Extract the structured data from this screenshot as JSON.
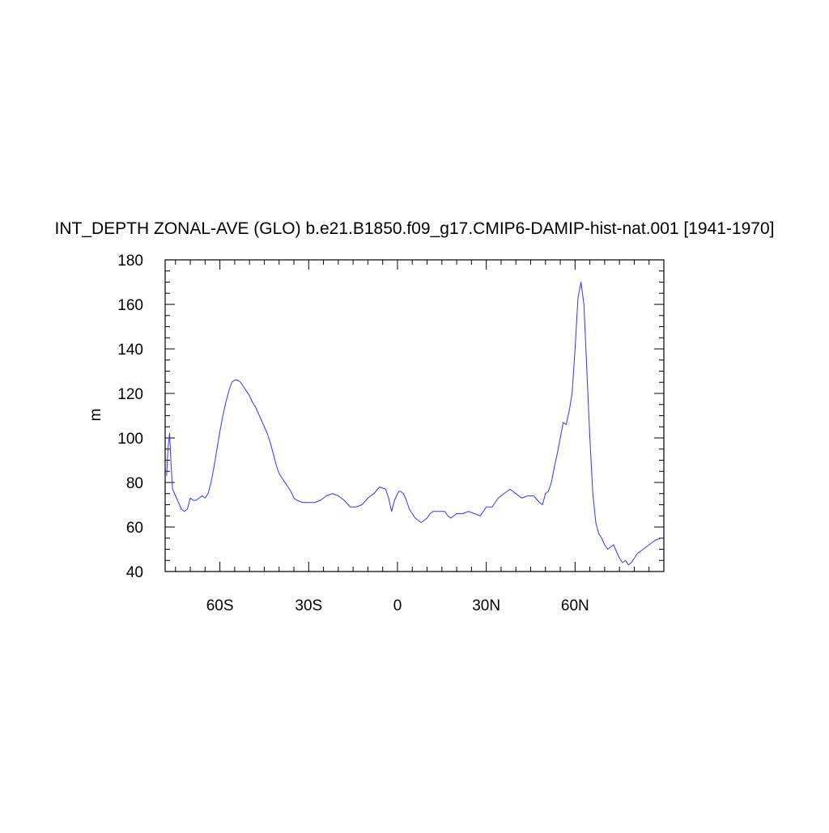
{
  "chart_data": {
    "type": "line",
    "title": "INT_DEPTH ZONAL-AVE (GLO) b.e21.B1850.f09_g17.CMIP6-DAMIP-hist-nat.001 [1941-1970]",
    "xlabel": "",
    "ylabel": "m",
    "xlim": [
      -78.5,
      90
    ],
    "ylim": [
      40,
      180
    ],
    "x_ticks": [
      -60,
      -30,
      0,
      30,
      60
    ],
    "x_tick_labels": [
      "60S",
      "30S",
      "0",
      "30N",
      "60N"
    ],
    "y_ticks": [
      40,
      60,
      80,
      100,
      120,
      140,
      160,
      180
    ],
    "y_tick_labels": [
      "40",
      "60",
      "80",
      "100",
      "120",
      "140",
      "160",
      "180"
    ],
    "grid": false,
    "line_color": "#3333ff",
    "series": [
      {
        "x": [
          -78,
          -77.5,
          -77,
          -76.5,
          -76,
          -75,
          -74,
          -73,
          -72,
          -71,
          -70,
          -69,
          -68,
          -67,
          -66,
          -65,
          -64,
          -63,
          -62,
          -61,
          -60,
          -59,
          -58,
          -57,
          -56,
          -55,
          -54,
          -53,
          -52,
          -51,
          -50,
          -49,
          -48,
          -47,
          -46,
          -45,
          -44,
          -43,
          -42,
          -41,
          -40,
          -39,
          -38,
          -37,
          -36,
          -35,
          -34,
          -32,
          -30,
          -28,
          -26,
          -24,
          -22,
          -20,
          -18,
          -16,
          -14,
          -12,
          -10,
          -8,
          -6,
          -4,
          -3,
          -2,
          -1,
          0,
          0.5,
          1,
          2,
          3,
          4,
          5,
          6,
          7,
          8,
          9,
          10,
          11,
          12,
          13,
          14,
          15,
          16,
          17,
          18,
          20,
          22,
          24,
          26,
          28,
          30,
          32,
          34,
          36,
          38,
          40,
          42,
          44,
          46,
          48,
          49,
          50,
          51,
          52,
          53,
          54,
          55,
          56,
          57,
          58,
          59,
          60,
          61,
          62,
          63,
          64,
          65,
          66,
          67,
          68,
          69,
          70,
          71,
          72,
          73,
          74,
          75,
          76,
          77,
          78,
          79,
          80,
          81,
          82,
          83,
          84,
          85,
          86,
          87,
          88,
          89,
          90
        ],
        "y": [
          83,
          96,
          102,
          88,
          77,
          74,
          71,
          68,
          67,
          68,
          73,
          72,
          72,
          73,
          74,
          73,
          75,
          80,
          87,
          95,
          103,
          110,
          116,
          121,
          125,
          126,
          126,
          125,
          123,
          121,
          119,
          116,
          114,
          111,
          108,
          105,
          102,
          98,
          93,
          88,
          84,
          82,
          80,
          78,
          76,
          73,
          72,
          71,
          71,
          71,
          72,
          74,
          75,
          74,
          72,
          69,
          69,
          70,
          73,
          75,
          78,
          77,
          73,
          67,
          72,
          75,
          76,
          76,
          75,
          72,
          68,
          66,
          64,
          63,
          62,
          63,
          64,
          66,
          67,
          67,
          67,
          67,
          67,
          65,
          64,
          66,
          66,
          67,
          66,
          65,
          69,
          69,
          73,
          75,
          77,
          75,
          73,
          74,
          74,
          71,
          70,
          75,
          76,
          80,
          87,
          93,
          100,
          107,
          106,
          112,
          120,
          140,
          163,
          170,
          160,
          130,
          100,
          75,
          62,
          57,
          55,
          52,
          50,
          51,
          52,
          49,
          46,
          44,
          45,
          43,
          44,
          46,
          48,
          49,
          50,
          51,
          52,
          53,
          54,
          54.5,
          55,
          55
        ]
      }
    ]
  }
}
